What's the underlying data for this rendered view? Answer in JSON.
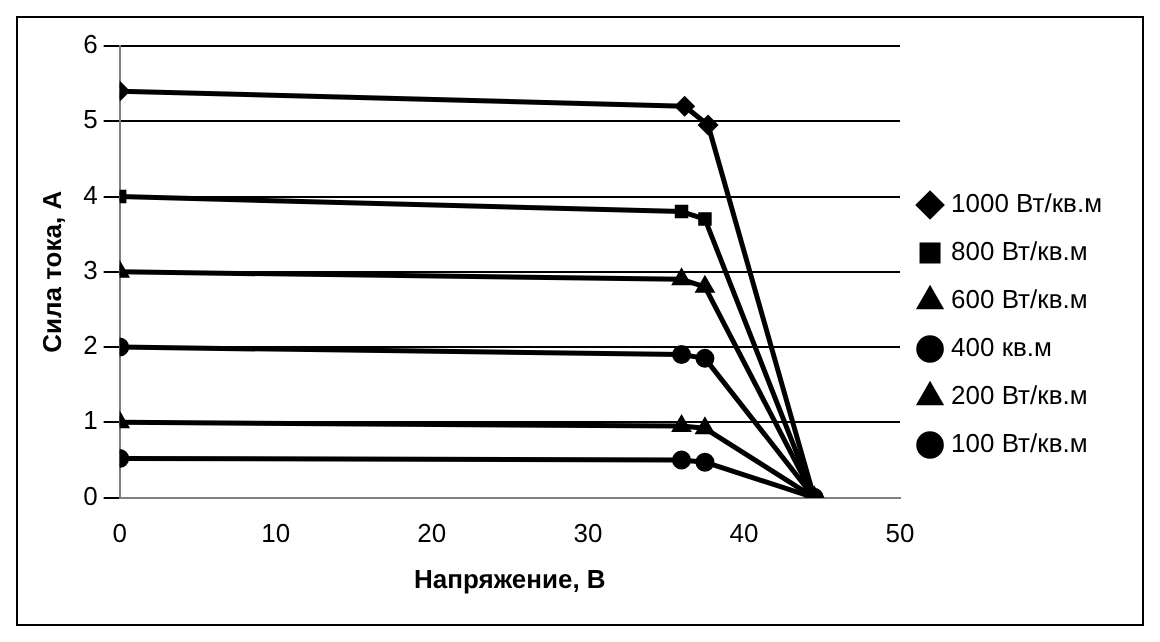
{
  "chart_data": {
    "type": "line",
    "xlabel": "Напряжение, В",
    "ylabel": "Сила тока, А",
    "xlim": [
      0,
      50
    ],
    "xticks": [
      0,
      10,
      20,
      30,
      40,
      50
    ],
    "ylim": [
      0,
      6
    ],
    "yticks": [
      0,
      1,
      2,
      3,
      4,
      5,
      6
    ],
    "grid": "y",
    "legend": "right",
    "line_style": "solid",
    "series": [
      {
        "name": "1000 Вт/кв.м",
        "color": "#000000",
        "marker": "diamond",
        "x": [
          0,
          36.2,
          37.7,
          44.5
        ],
        "values": [
          5.4,
          5.2,
          4.95,
          0
        ]
      },
      {
        "name": "800 Вт/кв.м",
        "color": "#000000",
        "marker": "square",
        "x": [
          0,
          36,
          37.5,
          44.5
        ],
        "values": [
          4.0,
          3.8,
          3.7,
          0
        ]
      },
      {
        "name": "600 Вт/кв.м",
        "color": "#000000",
        "marker": "triangle",
        "x": [
          0,
          36,
          37.5,
          44.5
        ],
        "values": [
          3.0,
          2.9,
          2.8,
          0
        ]
      },
      {
        "name": "400 кв.м",
        "color": "#000000",
        "marker": "circle",
        "x": [
          0,
          36,
          37.5,
          44.5
        ],
        "values": [
          2.0,
          1.9,
          1.85,
          0
        ]
      },
      {
        "name": "200 Вт/кв.м",
        "color": "#000000",
        "marker": "triangle",
        "x": [
          0,
          36,
          37.5,
          44.5
        ],
        "values": [
          1.0,
          0.95,
          0.92,
          0
        ]
      },
      {
        "name": "100 Вт/кв.м",
        "color": "#000000",
        "marker": "circle",
        "x": [
          0,
          36,
          37.5,
          44.5
        ],
        "values": [
          0.52,
          0.5,
          0.47,
          0
        ]
      }
    ]
  }
}
